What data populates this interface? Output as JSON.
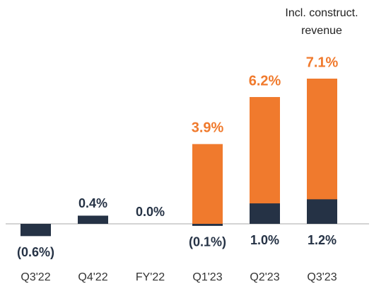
{
  "chart_data": {
    "type": "bar",
    "categories": [
      "Q3'22",
      "Q4'22",
      "FY'22",
      "Q1'23",
      "Q2'23",
      "Q3'23"
    ],
    "series": [
      {
        "name": "Incl. construct. revenue",
        "color": "#f07a2d",
        "values": [
          null,
          null,
          null,
          3.9,
          6.2,
          7.1
        ],
        "value_labels": [
          null,
          null,
          null,
          "3.9%",
          "6.2%",
          "7.1%"
        ]
      },
      {
        "color": "#253245",
        "values": [
          -0.6,
          0.4,
          0.0,
          -0.1,
          1.0,
          1.2
        ],
        "value_labels": [
          "(0.6%)",
          "0.4%",
          "0.0%",
          "(0.1%)",
          "1.0%",
          "1.2%"
        ]
      }
    ]
  }
}
